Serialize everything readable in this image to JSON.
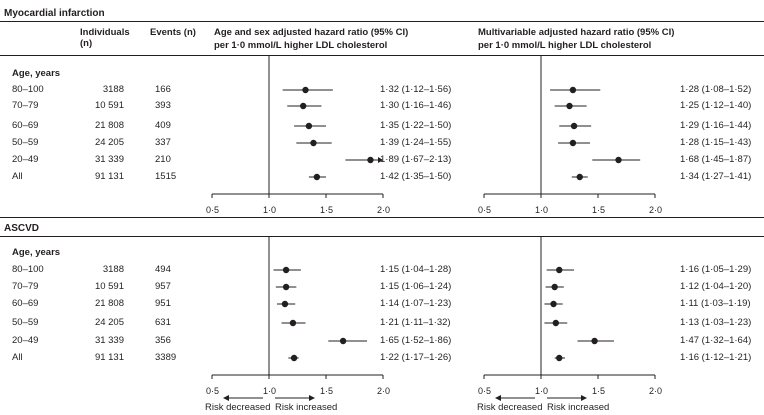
{
  "headers": {
    "individuals": "Individuals (n)",
    "events": "Events (n)",
    "hr_age_sex": "Age and sex adjusted hazard ratio (95% CI)",
    "hr_age_sex_sub": "per 1·0 mmol/L higher LDL cholesterol",
    "hr_multi": "Multivariable adjusted hazard ratio (95% CI)",
    "hr_multi_sub": "per 1·0 mmol/L higher LDL cholesterol"
  },
  "age_heading": "Age, years",
  "risk_labels": {
    "decreased": "Risk decreased",
    "increased": "Risk increased"
  },
  "colors": {
    "text": "#231f20",
    "line": "#231f20"
  },
  "chart_data": [
    {
      "type": "forest",
      "title": "Myocardial infarction",
      "categories": [
        "80–100",
        "70–79",
        "60–69",
        "50–59",
        "20–49",
        "All"
      ],
      "individuals": [
        "3188",
        "10 591",
        "21 808",
        "24 205",
        "31 339",
        "91 131"
      ],
      "events": [
        "166",
        "393",
        "409",
        "337",
        "210",
        "1515"
      ],
      "series": [
        {
          "name": "Age and sex adjusted hazard ratio (95% CI)",
          "xlim": [
            0.5,
            2.0
          ],
          "ticks": [
            0.5,
            1.0,
            1.5,
            2.0
          ],
          "tick_labels": [
            "0·5",
            "1·0",
            "1·5",
            "2·0"
          ],
          "ref": 1.0,
          "hr": [
            1.32,
            1.3,
            1.35,
            1.39,
            1.89,
            1.42
          ],
          "lo": [
            1.12,
            1.16,
            1.22,
            1.24,
            1.67,
            1.35
          ],
          "hi": [
            1.56,
            1.46,
            1.5,
            1.55,
            2.13,
            1.5
          ],
          "labels": [
            "1·32 (1·12–1·56)",
            "1·30 (1·16–1·46)",
            "1·35 (1·22–1·50)",
            "1·39 (1·24–1·55)",
            "1·89 (1·67–2·13)",
            "1·42 (1·35–1·50)"
          ]
        },
        {
          "name": "Multivariable adjusted hazard ratio (95% CI)",
          "xlim": [
            0.5,
            2.0
          ],
          "ticks": [
            0.5,
            1.0,
            1.5,
            2.0
          ],
          "tick_labels": [
            "0·5",
            "1·0",
            "1·5",
            "2·0"
          ],
          "ref": 1.0,
          "hr": [
            1.28,
            1.25,
            1.29,
            1.28,
            1.68,
            1.34
          ],
          "lo": [
            1.08,
            1.12,
            1.16,
            1.15,
            1.45,
            1.27
          ],
          "hi": [
            1.52,
            1.4,
            1.44,
            1.43,
            1.87,
            1.41
          ],
          "labels": [
            "1·28 (1·08–1·52)",
            "1·25 (1·12–1·40)",
            "1·29 (1·16–1·44)",
            "1·28 (1·15–1·43)",
            "1·68 (1·45–1·87)",
            "1·34 (1·27–1·41)"
          ]
        }
      ]
    },
    {
      "type": "forest",
      "title": "ASCVD",
      "categories": [
        "80–100",
        "70–79",
        "60–69",
        "50–59",
        "20–49",
        "All"
      ],
      "individuals": [
        "3188",
        "10 591",
        "21 808",
        "24 205",
        "31 339",
        "91 131"
      ],
      "events": [
        "494",
        "957",
        "951",
        "631",
        "356",
        "3389"
      ],
      "series": [
        {
          "name": "Age and sex adjusted hazard ratio (95% CI)",
          "xlim": [
            0.5,
            2.0
          ],
          "ticks": [
            0.5,
            1.0,
            1.5,
            2.0
          ],
          "tick_labels": [
            "0·5",
            "1·0",
            "1·5",
            "2·0"
          ],
          "ref": 1.0,
          "hr": [
            1.15,
            1.15,
            1.14,
            1.21,
            1.65,
            1.22
          ],
          "lo": [
            1.04,
            1.06,
            1.07,
            1.11,
            1.52,
            1.17
          ],
          "hi": [
            1.28,
            1.24,
            1.23,
            1.32,
            1.86,
            1.26
          ],
          "labels": [
            "1·15 (1·04–1·28)",
            "1·15 (1·06–1·24)",
            "1·14 (1·07–1·23)",
            "1·21 (1·11–1·32)",
            "1·65 (1·52–1·86)",
            "1·22 (1·17–1·26)"
          ]
        },
        {
          "name": "Multivariable adjusted hazard ratio (95% CI)",
          "xlim": [
            0.5,
            2.0
          ],
          "ticks": [
            0.5,
            1.0,
            1.5,
            2.0
          ],
          "tick_labels": [
            "0·5",
            "1·0",
            "1·5",
            "2·0"
          ],
          "ref": 1.0,
          "hr": [
            1.16,
            1.12,
            1.11,
            1.13,
            1.47,
            1.16
          ],
          "lo": [
            1.05,
            1.04,
            1.03,
            1.03,
            1.32,
            1.12
          ],
          "hi": [
            1.29,
            1.2,
            1.19,
            1.23,
            1.64,
            1.21
          ],
          "labels": [
            "1·16 (1·05–1·29)",
            "1·12 (1·04–1·20)",
            "1·11 (1·03–1·19)",
            "1·13 (1·03–1·23)",
            "1·47 (1·32–1·64)",
            "1·16 (1·12–1·21)"
          ]
        }
      ]
    }
  ]
}
